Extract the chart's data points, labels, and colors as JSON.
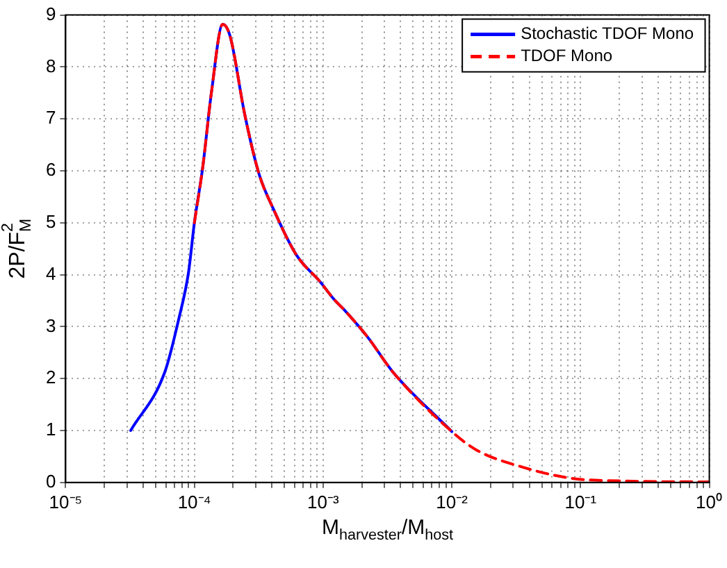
{
  "chart_data": {
    "type": "line",
    "xlabel": "M$_{harvester}$/M$_{host}$",
    "ylabel": "2P/F$_{M}$$^{2}$",
    "log": "x",
    "grid": true,
    "legend": "top right",
    "xlim": [
      1e-05,
      1
    ],
    "ylim": [
      0,
      9
    ],
    "xticks": [
      {
        "value": 1e-05,
        "label": "10⁻⁵"
      },
      {
        "value": 2e-05,
        "label": null
      },
      {
        "value": 3e-05,
        "label": null
      },
      {
        "value": 4e-05,
        "label": null
      },
      {
        "value": 5e-05,
        "label": null
      },
      {
        "value": 6e-05,
        "label": null
      },
      {
        "value": 7e-05,
        "label": null
      },
      {
        "value": 8e-05,
        "label": null
      },
      {
        "value": 9e-05,
        "label": null
      },
      {
        "value": 0.0001,
        "label": "10⁻⁴"
      },
      {
        "value": 0.0002,
        "label": null
      },
      {
        "value": 0.0003,
        "label": null
      },
      {
        "value": 0.0004,
        "label": null
      },
      {
        "value": 0.0005,
        "label": null
      },
      {
        "value": 0.0006,
        "label": null
      },
      {
        "value": 0.0007,
        "label": null
      },
      {
        "value": 0.0008,
        "label": null
      },
      {
        "value": 0.0009,
        "label": null
      },
      {
        "value": 0.001,
        "label": "10⁻³"
      },
      {
        "value": 0.002,
        "label": null
      },
      {
        "value": 0.003,
        "label": null
      },
      {
        "value": 0.004,
        "label": null
      },
      {
        "value": 0.005,
        "label": null
      },
      {
        "value": 0.006,
        "label": null
      },
      {
        "value": 0.007,
        "label": null
      },
      {
        "value": 0.008,
        "label": null
      },
      {
        "value": 0.009,
        "label": null
      },
      {
        "value": 0.01,
        "label": "10⁻²"
      },
      {
        "value": 0.02,
        "label": null
      },
      {
        "value": 0.03,
        "label": null
      },
      {
        "value": 0.04,
        "label": null
      },
      {
        "value": 0.05,
        "label": null
      },
      {
        "value": 0.06,
        "label": null
      },
      {
        "value": 0.07,
        "label": null
      },
      {
        "value": 0.08,
        "label": null
      },
      {
        "value": 0.09,
        "label": null
      },
      {
        "value": 0.1,
        "label": "10⁻¹"
      },
      {
        "value": 0.2,
        "label": null
      },
      {
        "value": 0.3,
        "label": null
      },
      {
        "value": 0.4,
        "label": null
      },
      {
        "value": 0.5,
        "label": null
      },
      {
        "value": 0.6,
        "label": null
      },
      {
        "value": 0.7,
        "label": null
      },
      {
        "value": 0.8,
        "label": null
      },
      {
        "value": 0.9,
        "label": null
      },
      {
        "value": 1,
        "label": "10⁰"
      }
    ],
    "yticks": [
      0,
      1,
      2,
      3,
      4,
      5,
      6,
      7,
      8,
      9
    ],
    "series": [
      {
        "name": "Stochastic TDOF Mono",
        "color": "#0000ff",
        "line_style": "solid",
        "x": [
          3.2e-05,
          5.9e-05,
          7.6e-05,
          9e-05,
          0.0001,
          0.000116,
          0.000136,
          0.000166,
          0.00019,
          0.000245,
          0.000316,
          0.00041,
          0.00062,
          0.00095,
          0.00122,
          0.00145,
          0.0022,
          0.0035,
          0.01
        ],
        "values": [
          1.0,
          2.13,
          3.17,
          4.04,
          5.0,
          6.06,
          7.53,
          8.82,
          8.58,
          7.11,
          5.96,
          5.27,
          4.38,
          3.86,
          3.52,
          3.33,
          2.81,
          2.12,
          0.98
        ]
      },
      {
        "name": "TDOF Mono",
        "color": "#ff0000",
        "line_style": "dashed",
        "x": [
          0.0001,
          0.000116,
          0.000136,
          0.000166,
          0.00019,
          0.000245,
          0.000316,
          0.00041,
          0.00062,
          0.00095,
          0.00122,
          0.00145,
          0.0022,
          0.0035,
          0.01,
          0.0154,
          0.036,
          0.085,
          0.2,
          1
        ],
        "values": [
          5.0,
          6.06,
          7.53,
          8.82,
          8.58,
          7.11,
          5.96,
          5.27,
          4.38,
          3.86,
          3.52,
          3.33,
          2.81,
          2.12,
          0.98,
          0.63,
          0.29,
          0.08,
          0.03,
          0.01
        ]
      }
    ]
  }
}
